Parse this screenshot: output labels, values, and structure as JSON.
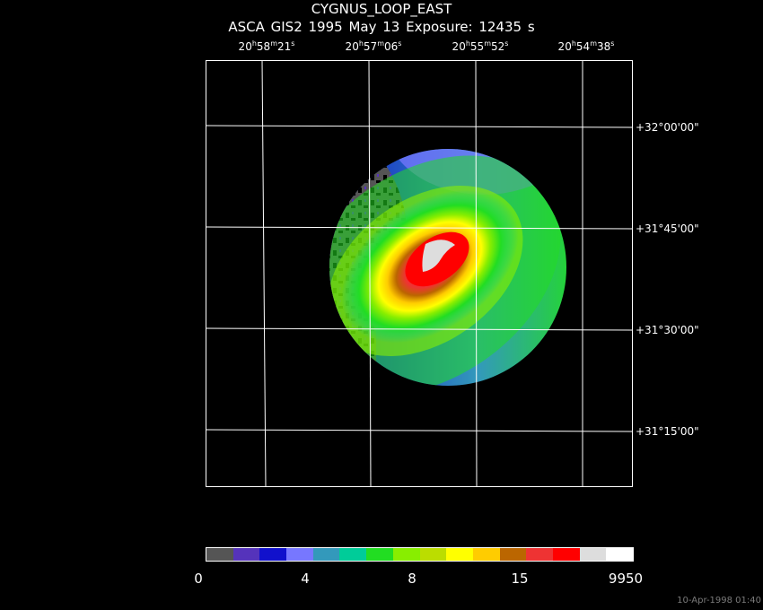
{
  "title": "CYGNUS_LOOP_EAST",
  "subtitle": "ASCA GIS2    1995 May 13    Exposure: 12435 s",
  "ra_labels": [
    {
      "h": "20",
      "m": "58",
      "s": "21"
    },
    {
      "h": "20",
      "m": "57",
      "s": "06"
    },
    {
      "h": "20",
      "m": "55",
      "s": "52"
    },
    {
      "h": "20",
      "m": "54",
      "s": "38"
    }
  ],
  "dec_labels": [
    "+32°00'00\"",
    "+31°45'00\"",
    "+31°30'00\"",
    "+31°15'00\""
  ],
  "colorbar": {
    "colors": [
      "#555555",
      "#5533bb",
      "#1111cc",
      "#7777ff",
      "#3399bb",
      "#00cc99",
      "#22dd22",
      "#88ee00",
      "#bbdd00",
      "#ffff00",
      "#ffcc00",
      "#bb6600",
      "#ee3333",
      "#ff0000",
      "#dddddd",
      "#ffffff"
    ],
    "labels": [
      "0",
      "4",
      "8",
      "15",
      "9950"
    ]
  },
  "timestamp": "10-Apr-1998 01:40"
}
